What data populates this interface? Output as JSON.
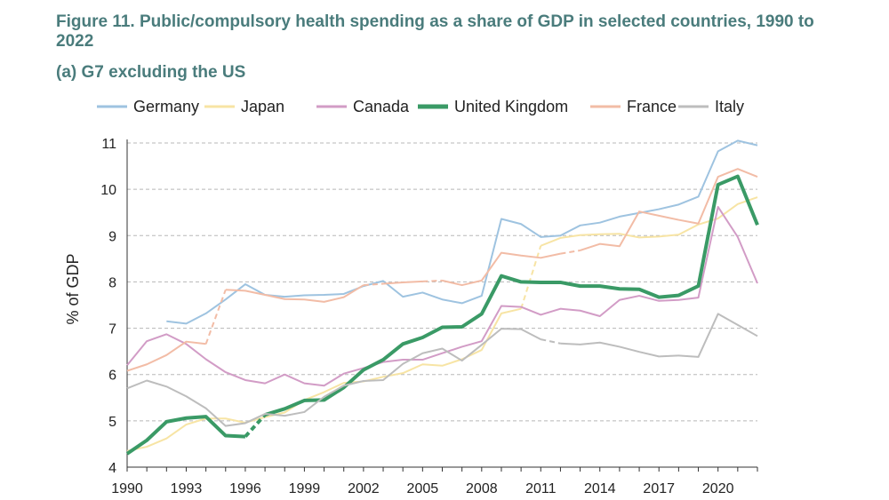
{
  "figure": {
    "title": "Figure 11. Public/compulsory health spending as a share of GDP in selected countries, 1990 to 2022",
    "subtitle": "(a) G7 excluding the US"
  },
  "chart_data": {
    "type": "line",
    "title": "Figure 11. Public/compulsory health spending as a share of GDP in selected countries, 1990 to 2022",
    "subtitle": "(a) G7 excluding the US",
    "xlabel": "",
    "ylabel": "% of GDP",
    "xlim": [
      1990,
      2022
    ],
    "ylim": [
      4,
      11
    ],
    "xticks": [
      1990,
      1993,
      1996,
      1999,
      2002,
      2005,
      2008,
      2011,
      2014,
      2017,
      2020
    ],
    "yticks": [
      4,
      5,
      6,
      7,
      8,
      9,
      10,
      11
    ],
    "grid": "horizontal-dashed",
    "legend_position": "top",
    "series": [
      {
        "name": "Germany",
        "color": "#9ec3e0",
        "width": 2,
        "x": [
          1992,
          1993,
          1994,
          1995,
          1996,
          1997,
          1998,
          1999,
          2000,
          2001,
          2002,
          2003,
          2004,
          2005,
          2006,
          2007,
          2008,
          2009,
          2010,
          2011,
          2012,
          2013,
          2014,
          2015,
          2016,
          2017,
          2018,
          2019,
          2020,
          2021,
          2022
        ],
        "y": [
          7.15,
          7.1,
          7.32,
          7.62,
          7.95,
          7.72,
          7.68,
          7.71,
          7.72,
          7.74,
          7.91,
          8.02,
          7.68,
          7.77,
          7.62,
          7.54,
          7.7,
          9.36,
          9.25,
          8.97,
          9.0,
          9.22,
          9.28,
          9.41,
          9.49,
          9.57,
          9.67,
          9.84,
          10.82,
          11.05,
          10.95
        ]
      },
      {
        "name": "Japan",
        "color": "#f7e4a4",
        "width": 2,
        "x": [
          1990,
          1991,
          1992,
          1993,
          1994,
          1995,
          1996,
          1997,
          1998,
          1999,
          2000,
          2001,
          2002,
          2003,
          2004,
          2005,
          2006,
          2007,
          2008,
          2009,
          2010,
          2011,
          2012,
          2013,
          2014,
          2015,
          2016,
          2017,
          2018,
          2019,
          2020,
          2021,
          2022
        ],
        "y": [
          4.35,
          4.44,
          4.62,
          4.92,
          5.05,
          5.05,
          4.96,
          5.08,
          5.18,
          5.45,
          5.62,
          5.82,
          5.85,
          5.95,
          6.03,
          6.22,
          6.19,
          6.33,
          6.53,
          7.32,
          7.42,
          8.78,
          8.95,
          9.01,
          9.03,
          9.04,
          8.96,
          8.98,
          9.02,
          9.24,
          9.37,
          9.68,
          9.83
        ],
        "gaps": [
          [
            2010,
            2011
          ]
        ]
      },
      {
        "name": "Canada",
        "color": "#d29cc6",
        "width": 2,
        "x": [
          1990,
          1991,
          1992,
          1993,
          1994,
          1995,
          1996,
          1997,
          1998,
          1999,
          2000,
          2001,
          2002,
          2003,
          2004,
          2005,
          2006,
          2007,
          2008,
          2009,
          2010,
          2011,
          2012,
          2013,
          2014,
          2015,
          2016,
          2017,
          2018,
          2019,
          2020,
          2021,
          2022
        ],
        "y": [
          6.2,
          6.72,
          6.87,
          6.66,
          6.33,
          6.05,
          5.88,
          5.81,
          6.0,
          5.81,
          5.76,
          6.02,
          6.14,
          6.27,
          6.32,
          6.32,
          6.46,
          6.6,
          6.72,
          7.48,
          7.46,
          7.29,
          7.42,
          7.38,
          7.26,
          7.61,
          7.7,
          7.59,
          7.61,
          7.66,
          9.62,
          8.97,
          7.97
        ]
      },
      {
        "name": "United Kingdom",
        "color": "#3a9a66",
        "width": 4,
        "x": [
          1990,
          1991,
          1992,
          1993,
          1994,
          1995,
          1996,
          1997,
          1998,
          1999,
          2000,
          2001,
          2002,
          2003,
          2004,
          2005,
          2006,
          2007,
          2008,
          2009,
          2010,
          2011,
          2012,
          2013,
          2014,
          2015,
          2016,
          2017,
          2018,
          2019,
          2020,
          2021,
          2022
        ],
        "y": [
          4.29,
          4.58,
          4.98,
          5.06,
          5.09,
          4.68,
          4.66,
          5.13,
          5.26,
          5.44,
          5.45,
          5.72,
          6.1,
          6.32,
          6.66,
          6.8,
          7.02,
          7.03,
          7.31,
          8.13,
          8.0,
          7.99,
          7.99,
          7.91,
          7.91,
          7.85,
          7.84,
          7.67,
          7.71,
          7.91,
          10.1,
          10.28,
          9.23
        ],
        "gaps": [
          [
            1996,
            1997
          ]
        ]
      },
      {
        "name": "France",
        "color": "#f2bca6",
        "width": 2,
        "x": [
          1990,
          1991,
          1992,
          1993,
          1994,
          1995,
          1996,
          1997,
          1998,
          1999,
          2000,
          2001,
          2002,
          2003,
          2004,
          2005,
          2006,
          2007,
          2008,
          2009,
          2010,
          2011,
          2012,
          2013,
          2014,
          2015,
          2016,
          2017,
          2018,
          2019,
          2020,
          2021,
          2022
        ],
        "y": [
          6.08,
          6.22,
          6.42,
          6.71,
          6.66,
          7.83,
          7.81,
          7.72,
          7.63,
          7.62,
          7.57,
          7.67,
          7.93,
          7.96,
          7.99,
          8.01,
          8.03,
          7.93,
          8.03,
          8.63,
          8.57,
          8.52,
          8.61,
          8.68,
          8.82,
          8.77,
          9.52,
          9.43,
          9.34,
          9.26,
          10.27,
          10.44,
          10.27
        ],
        "gaps": [
          [
            1994,
            1995
          ],
          [
            2002,
            2003
          ],
          [
            2005,
            2006
          ],
          [
            2012,
            2013
          ]
        ]
      },
      {
        "name": "Italy",
        "color": "#bdbdbd",
        "width": 2,
        "x": [
          1990,
          1991,
          1992,
          1993,
          1994,
          1995,
          1996,
          1997,
          1998,
          1999,
          2000,
          2001,
          2002,
          2003,
          2004,
          2005,
          2006,
          2007,
          2008,
          2009,
          2010,
          2011,
          2012,
          2013,
          2014,
          2015,
          2016,
          2017,
          2018,
          2019,
          2020,
          2021,
          2022
        ],
        "y": [
          5.7,
          5.87,
          5.74,
          5.53,
          5.27,
          4.89,
          4.95,
          5.15,
          5.11,
          5.19,
          5.52,
          5.76,
          5.86,
          5.88,
          6.23,
          6.46,
          6.56,
          6.3,
          6.64,
          6.99,
          6.98,
          6.76,
          6.67,
          6.65,
          6.69,
          6.6,
          6.49,
          6.39,
          6.41,
          6.38,
          7.31,
          7.07,
          6.83
        ],
        "gaps": [
          [
            2011,
            2012
          ]
        ]
      }
    ]
  }
}
